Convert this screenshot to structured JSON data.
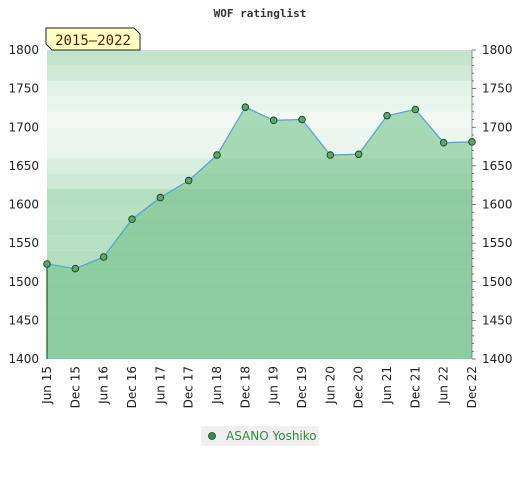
{
  "chart_data": {
    "type": "area",
    "title": "WOF ratinglist",
    "range_label": "2015—2022",
    "x": [
      "Jun 15",
      "Dec 15",
      "Jun 16",
      "Dec 16",
      "Jun 17",
      "Dec 17",
      "Jun 18",
      "Dec 18",
      "Jun 19",
      "Dec 19",
      "Jun 20",
      "Dec 20",
      "Jun 21",
      "Dec 21",
      "Jun 22",
      "Dec 22"
    ],
    "series": [
      {
        "name": "ASANO Yoshiko",
        "values": [
          1523,
          1517,
          1532,
          1581,
          1609,
          1631,
          1664,
          1726,
          1709,
          1710,
          1664,
          1665,
          1715,
          1723,
          1680,
          1681
        ]
      }
    ],
    "ylim": [
      1400,
      1800
    ],
    "yticks": [
      1400,
      1450,
      1500,
      1550,
      1600,
      1650,
      1700,
      1750,
      1800
    ],
    "xlabel": "",
    "ylabel": "",
    "legend_position": "bottom",
    "colors": {
      "line": "#5aa7c8",
      "marker_fill": "#5aa86a",
      "marker_stroke": "#1e3d22",
      "area": "#6cbf84",
      "legend_marker": "#3a8c4a"
    }
  }
}
